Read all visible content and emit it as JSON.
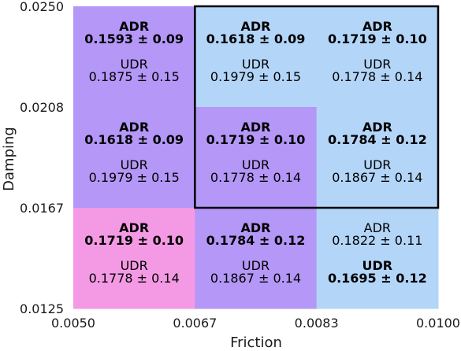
{
  "chart_data": {
    "type": "heatmap",
    "title": "",
    "xlabel": "Friction",
    "ylabel": "Damping",
    "x_ticks": [
      "0.0050",
      "0.0067",
      "0.0083",
      "0.0100"
    ],
    "y_ticks": [
      "0.0250",
      "0.0208",
      "0.0167",
      "0.0125"
    ],
    "xlim": [
      0.005,
      0.01
    ],
    "ylim": [
      0.0125,
      0.025
    ],
    "columns": 3,
    "rows": 3,
    "cells": [
      {
        "row": 0,
        "col": 0,
        "color": "#b497f7",
        "adr_label": "ADR",
        "adr_value": "0.1593 ± 0.09",
        "adr_bold": true,
        "udr_label": "UDR",
        "udr_value": "0.1875 ± 0.15",
        "udr_bold": false
      },
      {
        "row": 0,
        "col": 1,
        "color": "#b3d5f8",
        "adr_label": "ADR",
        "adr_value": "0.1618 ± 0.09",
        "adr_bold": true,
        "udr_label": "UDR",
        "udr_value": "0.1979 ± 0.15",
        "udr_bold": false
      },
      {
        "row": 0,
        "col": 2,
        "color": "#b3d5f8",
        "adr_label": "ADR",
        "adr_value": "0.1719 ± 0.10",
        "adr_bold": true,
        "udr_label": "UDR",
        "udr_value": "0.1778 ± 0.14",
        "udr_bold": false
      },
      {
        "row": 1,
        "col": 0,
        "color": "#b497f7",
        "adr_label": "ADR",
        "adr_value": "0.1618 ± 0.09",
        "adr_bold": true,
        "udr_label": "UDR",
        "udr_value": "0.1979 ± 0.15",
        "udr_bold": false
      },
      {
        "row": 1,
        "col": 1,
        "color": "#b497f7",
        "adr_label": "ADR",
        "adr_value": "0.1719 ± 0.10",
        "adr_bold": true,
        "udr_label": "UDR",
        "udr_value": "0.1778 ± 0.14",
        "udr_bold": false
      },
      {
        "row": 1,
        "col": 2,
        "color": "#b3d5f8",
        "adr_label": "ADR",
        "adr_value": "0.1784 ± 0.12",
        "adr_bold": true,
        "udr_label": "UDR",
        "udr_value": "0.1867 ± 0.14",
        "udr_bold": false
      },
      {
        "row": 2,
        "col": 0,
        "color": "#f49ae4",
        "adr_label": "ADR",
        "adr_value": "0.1719 ± 0.10",
        "adr_bold": true,
        "udr_label": "UDR",
        "udr_value": "0.1778 ± 0.14",
        "udr_bold": false
      },
      {
        "row": 2,
        "col": 1,
        "color": "#b497f7",
        "adr_label": "ADR",
        "adr_value": "0.1784 ± 0.12",
        "adr_bold": true,
        "udr_label": "UDR",
        "udr_value": "0.1867 ± 0.14",
        "udr_bold": false
      },
      {
        "row": 2,
        "col": 2,
        "color": "#b3d5f8",
        "adr_label": "ADR",
        "adr_value": "0.1822 ± 0.11",
        "adr_bold": false,
        "udr_label": "UDR",
        "udr_value": "0.1695 ± 0.12",
        "udr_bold": true
      }
    ],
    "highlight_region": {
      "col_start": 1,
      "col_end": 2,
      "row_start": 0,
      "row_end": 1,
      "color": "#000000"
    },
    "grid": false,
    "legend": "none"
  }
}
